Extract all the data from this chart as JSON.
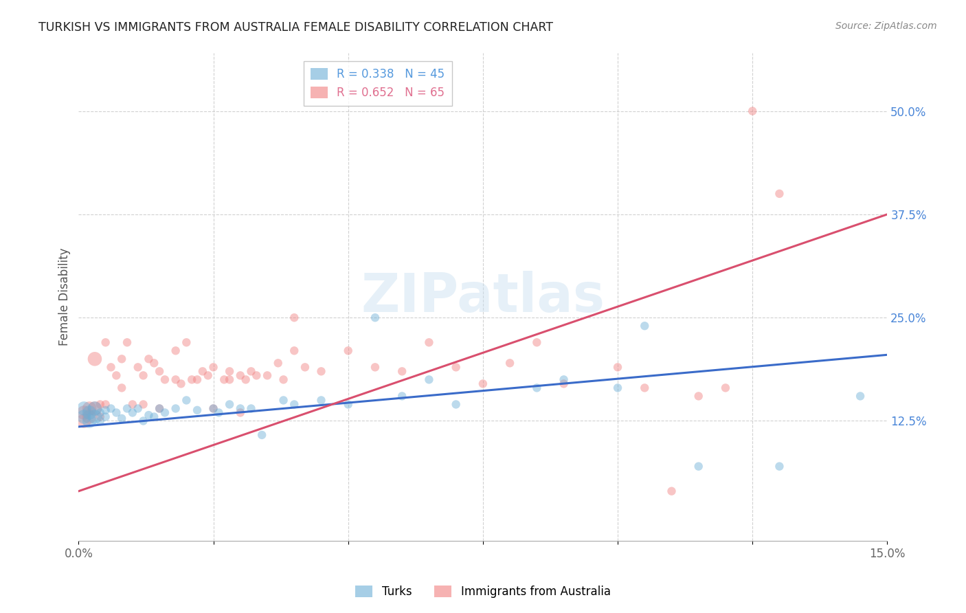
{
  "title": "TURKISH VS IMMIGRANTS FROM AUSTRALIA FEMALE DISABILITY CORRELATION CHART",
  "source_text": "Source: ZipAtlas.com",
  "ylabel_label": "Female Disability",
  "right_yticks": [
    "50.0%",
    "37.5%",
    "25.0%",
    "12.5%"
  ],
  "right_ytick_values": [
    0.5,
    0.375,
    0.25,
    0.125
  ],
  "xmin": 0.0,
  "xmax": 0.15,
  "ymin": -0.02,
  "ymax": 0.57,
  "watermark": "ZIPatlas",
  "blue_color": "#6baed6",
  "pink_color": "#f08080",
  "blue_line_color": "#3a6bc9",
  "pink_line_color": "#d94f6e",
  "background_color": "#ffffff",
  "grid_color": "#cccccc",
  "legend_blue_label": "R = 0.338   N = 45",
  "legend_pink_label": "R = 0.652   N = 65",
  "legend_blue_color": "#6baed6",
  "legend_pink_color": "#f08080",
  "legend_text_blue": "#5599dd",
  "legend_text_pink": "#e07090",
  "blue_line_x0": 0.0,
  "blue_line_y0": 0.118,
  "blue_line_x1": 0.15,
  "blue_line_y1": 0.205,
  "pink_line_x0": 0.0,
  "pink_line_y0": 0.04,
  "pink_line_x1": 0.15,
  "pink_line_y1": 0.375,
  "turks_x": [
    0.001,
    0.001,
    0.002,
    0.002,
    0.003,
    0.003,
    0.004,
    0.004,
    0.005,
    0.005,
    0.006,
    0.007,
    0.008,
    0.009,
    0.01,
    0.011,
    0.012,
    0.013,
    0.014,
    0.015,
    0.016,
    0.018,
    0.02,
    0.022,
    0.025,
    0.026,
    0.028,
    0.03,
    0.032,
    0.034,
    0.038,
    0.04,
    0.045,
    0.05,
    0.055,
    0.06,
    0.065,
    0.07,
    0.085,
    0.09,
    0.1,
    0.105,
    0.115,
    0.13,
    0.145
  ],
  "turks_y": [
    0.14,
    0.13,
    0.135,
    0.125,
    0.13,
    0.14,
    0.135,
    0.125,
    0.138,
    0.13,
    0.14,
    0.135,
    0.128,
    0.14,
    0.135,
    0.14,
    0.125,
    0.132,
    0.13,
    0.14,
    0.135,
    0.14,
    0.15,
    0.138,
    0.14,
    0.135,
    0.145,
    0.14,
    0.14,
    0.108,
    0.15,
    0.145,
    0.15,
    0.145,
    0.25,
    0.155,
    0.175,
    0.145,
    0.165,
    0.175,
    0.165,
    0.24,
    0.07,
    0.07,
    0.155
  ],
  "aus_x": [
    0.001,
    0.001,
    0.002,
    0.002,
    0.003,
    0.003,
    0.004,
    0.004,
    0.005,
    0.005,
    0.006,
    0.007,
    0.008,
    0.008,
    0.009,
    0.01,
    0.011,
    0.012,
    0.013,
    0.014,
    0.015,
    0.016,
    0.018,
    0.019,
    0.02,
    0.021,
    0.022,
    0.023,
    0.024,
    0.025,
    0.027,
    0.028,
    0.03,
    0.031,
    0.032,
    0.033,
    0.035,
    0.037,
    0.038,
    0.04,
    0.042,
    0.045,
    0.05,
    0.055,
    0.06,
    0.065,
    0.07,
    0.075,
    0.08,
    0.085,
    0.09,
    0.1,
    0.105,
    0.11,
    0.115,
    0.12,
    0.125,
    0.13,
    0.04,
    0.025,
    0.028,
    0.015,
    0.03,
    0.012,
    0.018
  ],
  "aus_y": [
    0.135,
    0.125,
    0.14,
    0.13,
    0.2,
    0.14,
    0.145,
    0.13,
    0.22,
    0.145,
    0.19,
    0.18,
    0.2,
    0.165,
    0.22,
    0.145,
    0.19,
    0.18,
    0.2,
    0.195,
    0.185,
    0.175,
    0.21,
    0.17,
    0.22,
    0.175,
    0.175,
    0.185,
    0.18,
    0.19,
    0.175,
    0.185,
    0.18,
    0.175,
    0.185,
    0.18,
    0.18,
    0.195,
    0.175,
    0.21,
    0.19,
    0.185,
    0.21,
    0.19,
    0.185,
    0.22,
    0.19,
    0.17,
    0.195,
    0.22,
    0.17,
    0.19,
    0.165,
    0.04,
    0.155,
    0.165,
    0.5,
    0.4,
    0.25,
    0.14,
    0.175,
    0.14,
    0.135,
    0.145,
    0.175
  ]
}
